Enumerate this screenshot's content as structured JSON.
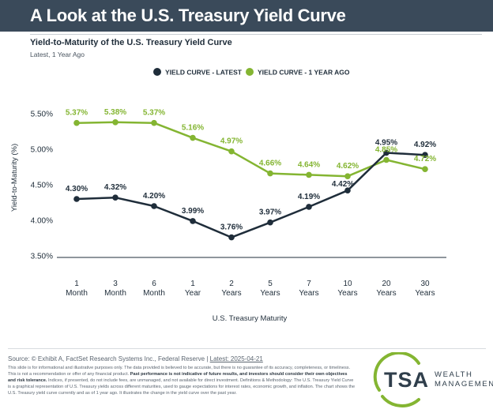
{
  "header": {
    "title": "A Look at the U.S. Treasury Yield Curve"
  },
  "colors": {
    "latest": "#1f2d3a",
    "year_ago": "#84b532",
    "header_bg": "#3a4a5a"
  },
  "chart_data": {
    "type": "line",
    "title": "Yield-to-Maturity of the U.S. Treasury Yield Curve",
    "subtitle": "Latest, 1 Year Ago",
    "xlabel": "U.S. Treasury Maturity",
    "ylabel": "Yield-to-Maturity (%)",
    "ylim": [
      3.5,
      5.5
    ],
    "yticks": [
      "3.50%",
      "4.00%",
      "4.50%",
      "5.00%",
      "5.50%"
    ],
    "ytick_values": [
      3.5,
      4.0,
      4.5,
      5.0,
      5.5
    ],
    "categories": [
      [
        "1",
        "Month"
      ],
      [
        "3",
        "Month"
      ],
      [
        "6",
        "Month"
      ],
      [
        "1",
        "Year"
      ],
      [
        "2",
        "Years"
      ],
      [
        "5",
        "Years"
      ],
      [
        "7",
        "Years"
      ],
      [
        "10",
        "Years"
      ],
      [
        "20",
        "Years"
      ],
      [
        "30",
        "Years"
      ]
    ],
    "legend_position": "top-center",
    "grid": false,
    "series": [
      {
        "name": "YIELD CURVE - LATEST",
        "color": "#1f2d3a",
        "values": [
          4.3,
          4.32,
          4.2,
          3.99,
          3.76,
          3.97,
          4.19,
          4.42,
          4.95,
          4.92
        ],
        "labels": [
          "4.30%",
          "4.32%",
          "4.20%",
          "3.99%",
          "3.76%",
          "3.97%",
          "4.19%",
          "4.42%",
          "4.95%",
          "4.92%"
        ]
      },
      {
        "name": "YIELD CURVE - 1 YEAR AGO",
        "color": "#84b532",
        "values": [
          5.37,
          5.38,
          5.37,
          5.16,
          4.97,
          4.66,
          4.64,
          4.62,
          4.85,
          4.72
        ],
        "labels": [
          "5.37%",
          "5.38%",
          "5.37%",
          "5.16%",
          "4.97%",
          "4.66%",
          "4.64%",
          "4.62%",
          "4.85%",
          "4.72%"
        ]
      }
    ]
  },
  "footer": {
    "source": "Source: © Exhibit A, FactSet Research Systems Inc., Federal Reserve | ",
    "source_date": "Latest: 2025-04-21",
    "disclaimer_1": "This slide is for informational and illustrative purposes only. The data provided is believed to be accurate, but there is no guarantee of its accuracy, completeness, or timeliness. This is not a recommendation or offer of any financial product. ",
    "disclaimer_bold": "Past performance is not indicative of future results, and investors should consider their own objectives and risk tolerance.",
    "disclaimer_2": " Indices, if presented, do not include fees, are unmanaged, and not available for direct investment. Definitions & Methodology: The U.S. Treasury Yield Curve is a graphical representation of U.S. Treasury yields across different maturities, used to gauge expectations for interest rates, economic growth, and inflation. The chart shows the U.S. Treasury yield curve currently and as of 1 year ago. It illustrates the change in the yield curve over the past year."
  },
  "logo": {
    "mark": "TSA",
    "line1": "WEALTH",
    "line2": "MANAGEMENT"
  }
}
